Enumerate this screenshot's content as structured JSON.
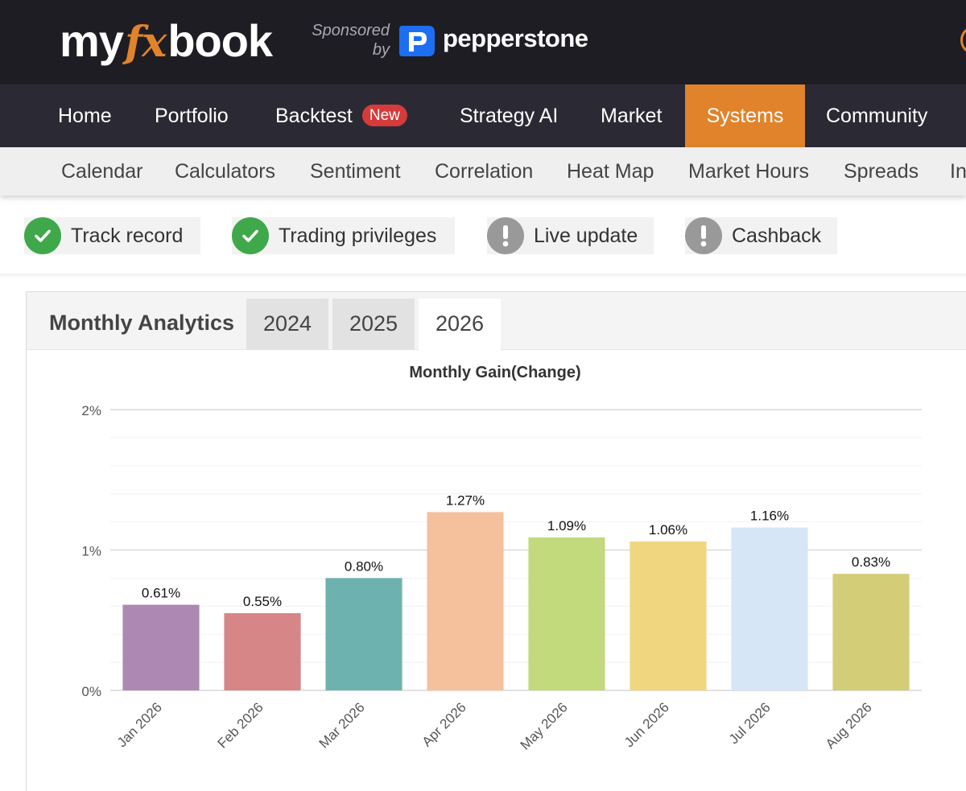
{
  "brand": {
    "logo_part1": "my",
    "logo_part2": "fx",
    "logo_part3": "book",
    "sponsored_line1": "Sponsored",
    "sponsored_line2": "by",
    "sponsor_name": "pepperstone",
    "accent_color": "#e0832b"
  },
  "main_nav": {
    "items": [
      {
        "label": "Home"
      },
      {
        "label": "Portfolio"
      },
      {
        "label": "Backtest",
        "badge": "New"
      },
      {
        "label": "Strategy AI"
      },
      {
        "label": "Market"
      },
      {
        "label": "Systems",
        "active": true
      },
      {
        "label": "Community"
      }
    ]
  },
  "sub_nav": {
    "items": [
      {
        "label": "Calendar"
      },
      {
        "label": "Calculators"
      },
      {
        "label": "Sentiment"
      },
      {
        "label": "Correlation"
      },
      {
        "label": "Heat Map"
      },
      {
        "label": "Market Hours"
      },
      {
        "label": "Spreads"
      },
      {
        "label": "In"
      }
    ]
  },
  "status_chips": [
    {
      "label": "Track record",
      "icon": "check-icon",
      "status": "ok"
    },
    {
      "label": "Trading privileges",
      "icon": "check-icon",
      "status": "ok"
    },
    {
      "label": "Live update",
      "icon": "exclamation-icon",
      "status": "warn"
    },
    {
      "label": "Cashback",
      "icon": "exclamation-icon",
      "status": "warn"
    }
  ],
  "analytics": {
    "title": "Monthly Analytics",
    "tabs": [
      {
        "label": "2024"
      },
      {
        "label": "2025"
      },
      {
        "label": "2026",
        "active": true
      }
    ]
  },
  "chart_data": {
    "type": "bar",
    "title": "Monthly Gain(Change)",
    "xlabel": "",
    "ylabel": "",
    "categories": [
      "Jan 2026",
      "Feb 2026",
      "Mar 2026",
      "Apr 2026",
      "May 2026",
      "Jun 2026",
      "Jul 2026",
      "Aug 2026"
    ],
    "values": [
      0.61,
      0.55,
      0.8,
      1.27,
      1.09,
      1.06,
      1.16,
      0.83
    ],
    "data_labels": [
      "0.61%",
      "0.55%",
      "0.80%",
      "1.27%",
      "1.09%",
      "1.06%",
      "1.16%",
      "0.83%"
    ],
    "colors": [
      "#ad88b2",
      "#d68686",
      "#6eb2b0",
      "#f4c19c",
      "#c2d97c",
      "#f0d67f",
      "#d7e6f6",
      "#d3cd78"
    ],
    "ylim": [
      0,
      2
    ],
    "yticks": [
      0,
      1,
      2
    ],
    "ytick_labels": [
      "0%",
      "1%",
      "2%"
    ],
    "grid": true
  }
}
